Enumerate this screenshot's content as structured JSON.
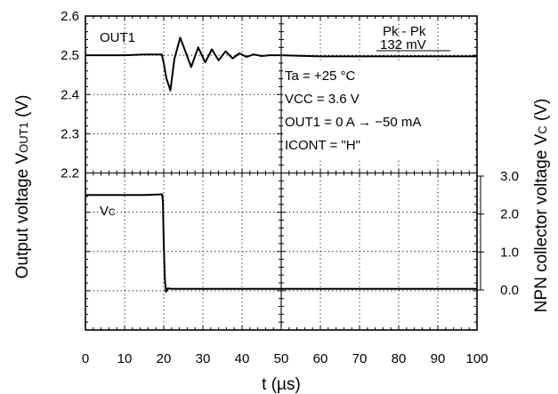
{
  "chart_data": {
    "type": "line",
    "xlabel": "t (µs)",
    "xlim": [
      0,
      100
    ],
    "x_ticks": [
      "0",
      "10",
      "20",
      "30",
      "40",
      "50",
      "60",
      "70",
      "80",
      "90",
      "100"
    ],
    "upper_panel": {
      "ylabel": "Output voltage VOUT1 (V)",
      "ylabel_main": "Output voltage V",
      "ylabel_sub": "OUT1",
      "ylabel_end": " (V)",
      "ylim": [
        2.2,
        2.6
      ],
      "y_ticks": [
        "2.6",
        "2.5",
        "2.4",
        "2.3",
        "2.2"
      ],
      "series_label": "OUT1",
      "series": [
        {
          "x": [
            0,
            5,
            10,
            15,
            19.5,
            20,
            20.7,
            21.7,
            22.7,
            24.2,
            25.7,
            27,
            28.8,
            30.6,
            32.3,
            34,
            35.8,
            37.6,
            39.3,
            41.1,
            43,
            45,
            47,
            49.9,
            60,
            70,
            80,
            90,
            100
          ],
          "y": [
            2.5,
            2.5,
            2.5,
            2.502,
            2.502,
            2.48,
            2.44,
            2.41,
            2.49,
            2.545,
            2.505,
            2.47,
            2.52,
            2.482,
            2.515,
            2.487,
            2.51,
            2.492,
            2.505,
            2.496,
            2.502,
            2.498,
            2.5,
            2.5,
            2.497,
            2.497,
            2.497,
            2.497,
            2.497
          ]
        }
      ]
    },
    "lower_panel": {
      "ylabel": "NPN collector voltage Vc (V)",
      "ylabel_main": "NPN collector voltage V",
      "ylabel_sub": "C",
      "ylabel_end": " (V)",
      "ylim": [
        0,
        3.0
      ],
      "y_ticks": [
        "3.0",
        "2.0",
        "1.0",
        "0.0"
      ],
      "series_label_main": "V",
      "series_label_sub": "C",
      "series": [
        {
          "x": [
            0,
            5,
            10,
            15,
            19.6,
            19.8,
            20.0,
            20.3,
            20.6,
            21,
            22,
            30,
            40,
            50,
            60,
            70,
            80,
            90,
            100
          ],
          "y": [
            2.5,
            2.5,
            2.5,
            2.5,
            2.52,
            2.3,
            1.2,
            0.25,
            -0.05,
            0.04,
            0.03,
            0.03,
            0.03,
            0.03,
            0.03,
            0.03,
            0.03,
            0.03,
            0.03
          ]
        }
      ]
    },
    "annotations": {
      "pkpk_label": "Pk - Pk",
      "pkpk_value": "132 mV",
      "ta": "Ta = +25 °C",
      "vcc": "VCC = 3.6 V",
      "out1": "OUT1 = 0 A → −50 mA",
      "icont": "ICONT = \"H\""
    }
  }
}
